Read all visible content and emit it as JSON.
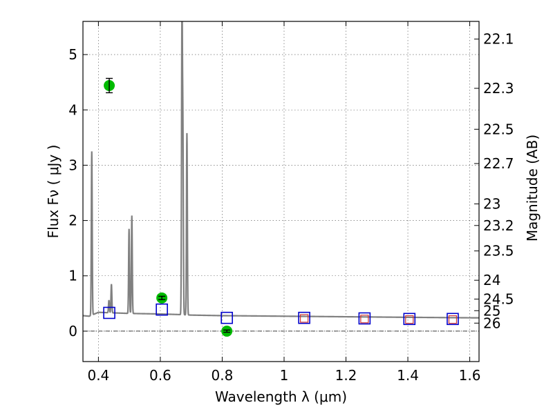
{
  "chart_data": {
    "type": "scatter",
    "title": "",
    "xlabel": "Wavelength  λ (μm)",
    "ylabel": "Flux  Fν  ( μJy )",
    "ylabel_right": "Magnitude (AB)",
    "xlim": [
      0.35,
      1.63
    ],
    "ylim": [
      -0.55,
      5.6
    ],
    "grid": true,
    "x_ticks": [
      0.4,
      0.6,
      0.8,
      1.0,
      1.2,
      1.4,
      1.6
    ],
    "x_tick_labels": [
      "0.4",
      "0.6",
      "0.8",
      "1",
      "1.2",
      "1.4",
      "1.6"
    ],
    "y_ticks": [
      0,
      1,
      2,
      3,
      4,
      5
    ],
    "y_tick_labels": [
      "0",
      "1",
      "2",
      "3",
      "4",
      "5"
    ],
    "right_ticks": [
      {
        "label": "22.1",
        "flux": 5.28
      },
      {
        "label": "22.3",
        "flux": 4.39
      },
      {
        "label": "22.5",
        "flux": 3.65
      },
      {
        "label": "22.7",
        "flux": 3.03
      },
      {
        "label": "23",
        "flux": 2.3
      },
      {
        "label": "23.2",
        "flux": 1.91
      },
      {
        "label": "23.5",
        "flux": 1.45
      },
      {
        "label": "24",
        "flux": 0.92
      },
      {
        "label": "24.5",
        "flux": 0.58
      },
      {
        "label": "25",
        "flux": 0.37
      },
      {
        "label": "26",
        "flux": 0.145
      }
    ],
    "series": [
      {
        "kind": "spectrum",
        "color": "#808080",
        "continuum": [
          [
            0.35,
            0.28
          ],
          [
            0.37,
            0.27
          ],
          [
            0.4,
            0.34
          ],
          [
            0.45,
            0.33
          ],
          [
            0.5,
            0.32
          ],
          [
            0.6,
            0.31
          ],
          [
            0.66,
            0.3
          ],
          [
            0.7,
            0.29
          ],
          [
            0.8,
            0.28
          ],
          [
            1.0,
            0.27
          ],
          [
            1.2,
            0.26
          ],
          [
            1.4,
            0.25
          ],
          [
            1.63,
            0.24
          ]
        ],
        "lines": [
          {
            "center": 0.3785,
            "peak": 3.25
          },
          {
            "center": 0.434,
            "peak": 0.56
          },
          {
            "center": 0.442,
            "peak": 0.85
          },
          {
            "center": 0.499,
            "peak": 1.85
          },
          {
            "center": 0.508,
            "peak": 2.09
          },
          {
            "center": 0.67,
            "peak": 5.6
          },
          {
            "center": 0.673,
            "peak": 3.45
          },
          {
            "center": 0.686,
            "peak": 3.58
          }
        ]
      },
      {
        "kind": "model_photometry",
        "color": "#0000cc",
        "points": [
          [
            0.435,
            0.33
          ],
          [
            0.605,
            0.39
          ],
          [
            0.815,
            0.24
          ],
          [
            1.065,
            0.24
          ],
          [
            1.26,
            0.23
          ],
          [
            1.405,
            0.22
          ],
          [
            1.545,
            0.22
          ]
        ]
      },
      {
        "kind": "observed_photometry_open",
        "color": "#cc3333",
        "points": [
          [
            1.065,
            0.23
          ],
          [
            1.26,
            0.22
          ],
          [
            1.405,
            0.21
          ],
          [
            1.545,
            0.21
          ]
        ]
      },
      {
        "kind": "observed_photometry_detected",
        "color": "#00bb00",
        "points": [
          {
            "x": 0.435,
            "y": 4.44,
            "err": 0.13
          },
          {
            "x": 0.605,
            "y": 0.6,
            "err": 0.03
          },
          {
            "x": 0.815,
            "y": 0.0,
            "err": 0.02
          }
        ]
      }
    ]
  }
}
